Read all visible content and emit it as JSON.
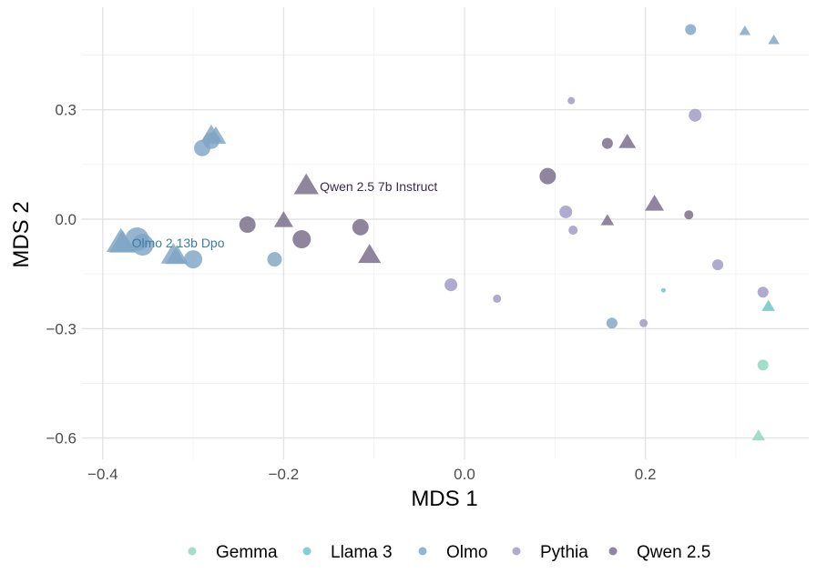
{
  "chart_data": {
    "type": "scatter",
    "xlabel": "MDS 1",
    "ylabel": "MDS 2",
    "xlim": [
      -0.44,
      0.76
    ],
    "ylim": [
      -0.66,
      0.58
    ],
    "x_ticks": [
      -0.4,
      -0.2,
      0.0,
      0.2
    ],
    "x_tick_labels": [
      "−0.4",
      "−0.2",
      "0.0",
      "0.2"
    ],
    "y_ticks": [
      -0.6,
      -0.3,
      0.0,
      0.3
    ],
    "y_tick_labels": [
      "−0.6",
      "−0.3",
      "0.0",
      "0.3"
    ],
    "grid": true,
    "legend_position": "bottom",
    "shape_note": "circle and triangle markers; marker size varies per point",
    "series": [
      {
        "name": "Gemma",
        "color": "#8fd7c0",
        "points": [
          {
            "x": 0.33,
            "y": -0.4,
            "shape": "circle",
            "size": 6
          },
          {
            "x": 0.325,
            "y": -0.595,
            "shape": "triangle",
            "size": 7
          }
        ]
      },
      {
        "name": "Llama 3",
        "color": "#6cc3c6",
        "points": [
          {
            "x": 0.22,
            "y": -0.195,
            "shape": "circle",
            "size": 2.5
          },
          {
            "x": 0.336,
            "y": -0.24,
            "shape": "triangle",
            "size": 7
          }
        ]
      },
      {
        "name": "Olmo",
        "color": "#7fa5c4",
        "points": [
          {
            "x": 0.25,
            "y": 0.52,
            "shape": "circle",
            "size": 6
          },
          {
            "x": 0.31,
            "y": 0.515,
            "shape": "triangle",
            "size": 6
          },
          {
            "x": 0.342,
            "y": 0.49,
            "shape": "triangle",
            "size": 6
          },
          {
            "x": -0.29,
            "y": 0.195,
            "shape": "circle",
            "size": 9
          },
          {
            "x": -0.28,
            "y": 0.215,
            "shape": "circle",
            "size": 9
          },
          {
            "x": -0.28,
            "y": 0.23,
            "shape": "triangle",
            "size": 11
          },
          {
            "x": -0.275,
            "y": 0.225,
            "shape": "triangle",
            "size": 11
          },
          {
            "x": -0.38,
            "y": -0.065,
            "shape": "triangle",
            "size": 15
          },
          {
            "x": -0.378,
            "y": -0.068,
            "shape": "triangle",
            "size": 14
          },
          {
            "x": -0.362,
            "y": -0.055,
            "shape": "circle",
            "size": 13
          },
          {
            "x": -0.356,
            "y": -0.07,
            "shape": "circle",
            "size": 12
          },
          {
            "x": -0.322,
            "y": -0.1,
            "shape": "triangle",
            "size": 13
          },
          {
            "x": -0.318,
            "y": -0.103,
            "shape": "triangle",
            "size": 12
          },
          {
            "x": -0.3,
            "y": -0.11,
            "shape": "circle",
            "size": 10
          },
          {
            "x": -0.21,
            "y": -0.11,
            "shape": "circle",
            "size": 8
          },
          {
            "x": 0.163,
            "y": -0.285,
            "shape": "circle",
            "size": 6
          }
        ]
      },
      {
        "name": "Pythia",
        "color": "#9c98c3",
        "points": [
          {
            "x": 0.118,
            "y": 0.325,
            "shape": "circle",
            "size": 4
          },
          {
            "x": 0.255,
            "y": 0.285,
            "shape": "circle",
            "size": 7
          },
          {
            "x": 0.112,
            "y": 0.02,
            "shape": "circle",
            "size": 7
          },
          {
            "x": 0.12,
            "y": -0.03,
            "shape": "circle",
            "size": 5
          },
          {
            "x": -0.015,
            "y": -0.18,
            "shape": "circle",
            "size": 7
          },
          {
            "x": 0.036,
            "y": -0.218,
            "shape": "circle",
            "size": 4.5
          },
          {
            "x": 0.198,
            "y": -0.285,
            "shape": "circle",
            "size": 4.5
          },
          {
            "x": 0.28,
            "y": -0.125,
            "shape": "circle",
            "size": 6
          },
          {
            "x": 0.33,
            "y": -0.2,
            "shape": "circle",
            "size": 6
          }
        ]
      },
      {
        "name": "Qwen 2.5",
        "color": "#766b89",
        "points": [
          {
            "x": -0.175,
            "y": 0.09,
            "shape": "triangle",
            "size": 13
          },
          {
            "x": -0.24,
            "y": -0.015,
            "shape": "circle",
            "size": 9
          },
          {
            "x": -0.2,
            "y": -0.005,
            "shape": "triangle",
            "size": 10
          },
          {
            "x": -0.18,
            "y": -0.055,
            "shape": "circle",
            "size": 10
          },
          {
            "x": -0.115,
            "y": -0.022,
            "shape": "circle",
            "size": 9
          },
          {
            "x": -0.105,
            "y": -0.1,
            "shape": "triangle",
            "size": 12
          },
          {
            "x": 0.092,
            "y": 0.118,
            "shape": "circle",
            "size": 9
          },
          {
            "x": 0.158,
            "y": 0.208,
            "shape": "circle",
            "size": 6
          },
          {
            "x": 0.18,
            "y": 0.21,
            "shape": "triangle",
            "size": 9
          },
          {
            "x": 0.21,
            "y": 0.04,
            "shape": "triangle",
            "size": 10
          },
          {
            "x": 0.158,
            "y": -0.005,
            "shape": "triangle",
            "size": 7
          },
          {
            "x": 0.248,
            "y": 0.012,
            "shape": "circle",
            "size": 5
          }
        ]
      }
    ],
    "annotations": [
      {
        "text": "Qwen 2.5 7b Instruct",
        "x": -0.16,
        "y": 0.09,
        "color": "#3b2b4e"
      },
      {
        "text": "Olmo 2 13b Dpo",
        "x": -0.368,
        "y": -0.065,
        "color": "#3e7ca6"
      }
    ],
    "legend": [
      {
        "label": "Gemma",
        "color": "#8fd7c0"
      },
      {
        "label": "Llama 3",
        "color": "#6cc3c6"
      },
      {
        "label": "Olmo",
        "color": "#7fa5c4"
      },
      {
        "label": "Pythia",
        "color": "#9c98c3"
      },
      {
        "label": "Qwen 2.5",
        "color": "#766b89"
      }
    ]
  }
}
